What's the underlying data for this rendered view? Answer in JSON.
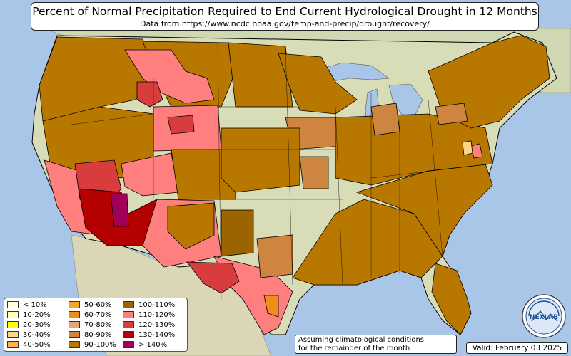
{
  "title": "Percent of Normal Precipitation Required to End Current Hydrological Drought in 12 Months",
  "subtitle": "Data from https://www.ncdc.noaa.gov/temp-and-precip/drought/recovery/",
  "note_line1": "Assuming climatological conditions",
  "note_line2": "for the remainder of the month",
  "valid": "Valid: February 03 2025",
  "logo_text": "NEXLAB",
  "legend": [
    {
      "label": "< 10%",
      "color": "#ffffe6"
    },
    {
      "label": "10-20%",
      "color": "#ffffb3"
    },
    {
      "label": "20-30%",
      "color": "#ffff00"
    },
    {
      "label": "30-40%",
      "color": "#fed68a"
    },
    {
      "label": "40-50%",
      "color": "#fdb24b"
    },
    {
      "label": "50-60%",
      "color": "#f5a623"
    },
    {
      "label": "60-70%",
      "color": "#f28c1c"
    },
    {
      "label": "70-80%",
      "color": "#e0a878"
    },
    {
      "label": "80-90%",
      "color": "#cd853f"
    },
    {
      "label": "90-100%",
      "color": "#b87800"
    },
    {
      "label": "100-110%",
      "color": "#9b6400"
    },
    {
      "label": "110-120%",
      "color": "#ff7f7f"
    },
    {
      "label": "120-130%",
      "color": "#d83c3c"
    },
    {
      "label": "130-140%",
      "color": "#b40000"
    },
    {
      "label": "> 140%",
      "color": "#a0005a"
    }
  ],
  "colors": {
    "ocean": "#a9c6e8",
    "land": "#d8ddb8",
    "drought_main": "#b87800",
    "drought_dark": "#9b6400"
  }
}
